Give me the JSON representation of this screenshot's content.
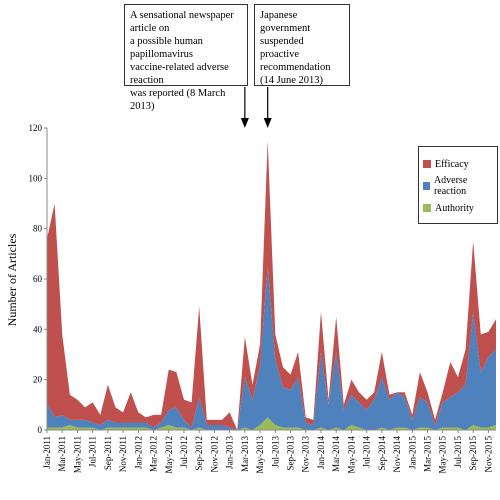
{
  "chart_data": {
    "type": "area",
    "stacked": true,
    "ylabel": "Number of Articles",
    "xlabel": "",
    "ylim": [
      0,
      120
    ],
    "yticks": [
      0,
      20,
      40,
      60,
      80,
      100,
      120
    ],
    "x": [
      "Jan-2011",
      "Feb-2011",
      "Mar-2011",
      "Apr-2011",
      "May-2011",
      "Jun-2011",
      "Jul-2011",
      "Aug-2011",
      "Sep-2011",
      "Oct-2011",
      "Nov-2011",
      "Dec-2011",
      "Jan-2012",
      "Feb-2012",
      "Mar-2012",
      "Apr-2012",
      "May-2012",
      "Jun-2012",
      "Jul-2012",
      "Aug-2012",
      "Sep-2012",
      "Oct-2012",
      "Nov-2012",
      "Dec-2012",
      "Jan-2013",
      "Feb-2013",
      "Mar-2013",
      "Apr-2013",
      "May-2013",
      "Jun-2013",
      "Jul-2013",
      "Aug-2013",
      "Sep-2013",
      "Oct-2013",
      "Nov-2013",
      "Dec-2013",
      "Jan-2014",
      "Feb-2014",
      "Mar-2014",
      "Apr-2014",
      "May-2014",
      "Jun-2014",
      "Jul-2014",
      "Aug-2014",
      "Sep-2014",
      "Oct-2014",
      "Nov-2014",
      "Dec-2014",
      "Jan-2015",
      "Feb-2015",
      "Mar-2015",
      "Apr-2015",
      "May-2015",
      "Jun-2015",
      "Jul-2015",
      "Aug-2015",
      "Sep-2015",
      "Oct-2015",
      "Nov-2015",
      "Dec-2015"
    ],
    "xtick_labels": [
      "Jan-2011",
      "Mar-2011",
      "May-2011",
      "Jul-2011",
      "Sep-2011",
      "Nov-2011",
      "Jan-2012",
      "Mar-2012",
      "May-2012",
      "Jul-2012",
      "Sep-2012",
      "Nov-2012",
      "Jan-2013",
      "Mar-2013",
      "May-2013",
      "Jul-2013",
      "Sep-2013",
      "Nov-2013",
      "Jan-2014",
      "Mar-2014",
      "May-2014",
      "Jul-2014",
      "Sep-2014",
      "Nov-2014",
      "Jan-2015",
      "Mar-2015",
      "May-2015",
      "Jul-2015",
      "Sep-2015",
      "Nov-2015"
    ],
    "series": [
      {
        "name": "Authority",
        "color": "#9bbb59",
        "values": [
          1,
          1,
          1,
          2,
          1,
          1,
          1,
          0,
          1,
          1,
          1,
          1,
          1,
          1,
          0,
          1,
          2,
          1,
          1,
          0,
          1,
          0,
          0,
          0,
          0,
          0,
          1,
          0,
          2,
          5,
          2,
          1,
          1,
          1,
          0,
          0,
          1,
          0,
          1,
          0,
          2,
          1,
          0,
          0,
          1,
          0,
          1,
          1,
          0,
          1,
          1,
          0,
          1,
          1,
          1,
          0,
          2,
          1,
          1,
          2
        ]
      },
      {
        "name": "Adverse reaction",
        "color": "#4f81bd",
        "values": [
          10,
          4,
          5,
          2,
          3,
          3,
          2,
          2,
          3,
          2,
          2,
          2,
          2,
          2,
          1,
          2,
          6,
          8,
          3,
          1,
          12,
          2,
          2,
          2,
          1,
          0,
          20,
          12,
          24,
          60,
          26,
          16,
          15,
          20,
          3,
          2,
          30,
          10,
          30,
          8,
          12,
          10,
          8,
          12,
          20,
          12,
          14,
          12,
          4,
          12,
          10,
          2,
          10,
          12,
          14,
          18,
          45,
          22,
          28,
          30
        ]
      },
      {
        "name": "Efficacy",
        "color": "#c0504d",
        "values": [
          65,
          85,
          32,
          10,
          8,
          5,
          8,
          4,
          14,
          6,
          4,
          12,
          4,
          2,
          5,
          3,
          16,
          14,
          8,
          10,
          36,
          2,
          2,
          2,
          6,
          0,
          16,
          6,
          8,
          50,
          10,
          8,
          6,
          10,
          2,
          2,
          16,
          2,
          14,
          2,
          6,
          4,
          4,
          3,
          10,
          2,
          0,
          2,
          2,
          10,
          4,
          2,
          4,
          14,
          6,
          14,
          28,
          15,
          10,
          12
        ]
      }
    ],
    "legend": {
      "position": "right",
      "entries": [
        "Efficacy",
        "Adverse reaction",
        "Authority"
      ]
    },
    "annotations": [
      {
        "text": "A sensational newspaper article on\na possible human papillomavirus\nvaccine-related adverse reaction\nwas reported (8 March 2013)",
        "target_x": "Mar-2013"
      },
      {
        "text": "Japanese government\nsuspended proactive\nrecommendation\n(14 June 2013)",
        "target_x": "Jun-2013"
      }
    ]
  }
}
